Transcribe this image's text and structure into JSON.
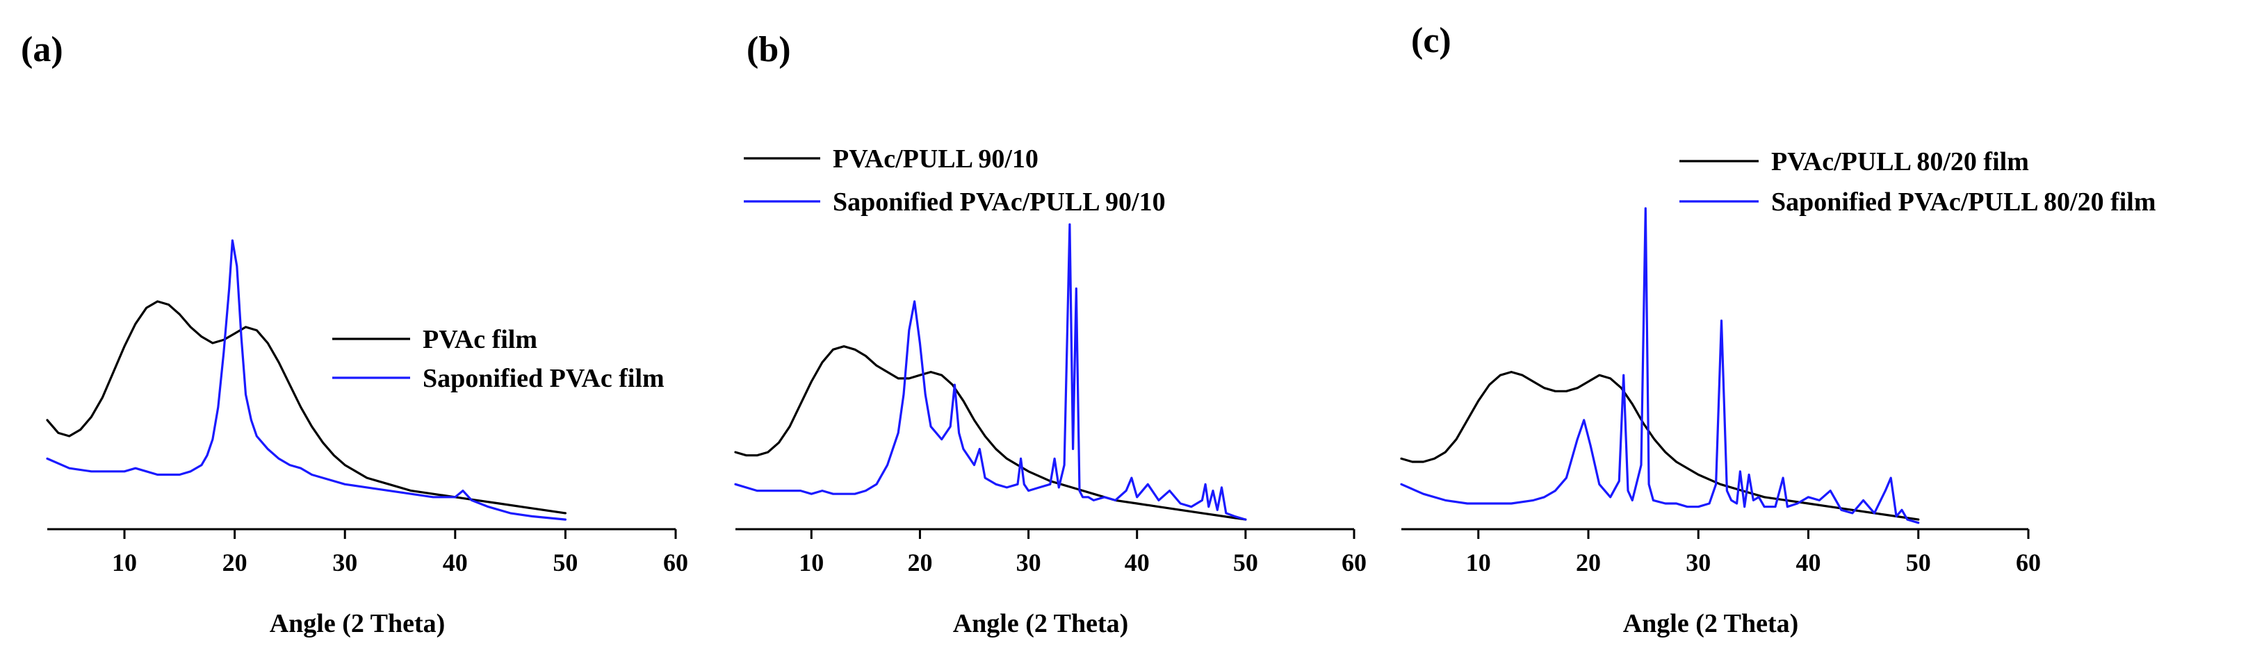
{
  "chart_data": [
    {
      "type": "line",
      "panel_label": "(a)",
      "xlabel": "Angle (2 Theta)",
      "ylabel": "",
      "xlim": [
        3,
        60
      ],
      "ylim": [
        0,
        100
      ],
      "xticks": [
        "10",
        "20",
        "30",
        "40",
        "50",
        "60"
      ],
      "legend": {
        "position": "center-right",
        "entries": [
          "PVAc film",
          "Saponified PVAc film"
        ]
      },
      "series": [
        {
          "name": "PVAc film",
          "color": "#000000",
          "x": [
            3,
            4,
            5,
            6,
            7,
            8,
            9,
            10,
            11,
            12,
            13,
            14,
            15,
            16,
            17,
            18,
            19,
            20,
            21,
            22,
            23,
            24,
            25,
            26,
            27,
            28,
            29,
            30,
            32,
            34,
            36,
            38,
            40,
            42,
            44,
            46,
            48,
            50
          ],
          "y": [
            34,
            30,
            29,
            31,
            35,
            41,
            49,
            57,
            64,
            69,
            71,
            70,
            67,
            63,
            60,
            58,
            59,
            61,
            63,
            62,
            58,
            52,
            45,
            38,
            32,
            27,
            23,
            20,
            16,
            14,
            12,
            11,
            10,
            9,
            8,
            7,
            6,
            5
          ]
        },
        {
          "name": "Saponified PVAc film",
          "color": "#1a1aff",
          "x": [
            3,
            5,
            7,
            9,
            10,
            11,
            12,
            13,
            14,
            15,
            16,
            17,
            17.5,
            18,
            18.5,
            19,
            19.5,
            19.8,
            20.2,
            20.6,
            21,
            21.5,
            22,
            23,
            24,
            25,
            26,
            27,
            28,
            30,
            32,
            34,
            36,
            38,
            40,
            40.7,
            41.5,
            43,
            45,
            47,
            50
          ],
          "y": [
            22,
            19,
            18,
            18,
            18,
            19,
            18,
            17,
            17,
            17,
            18,
            20,
            23,
            28,
            38,
            55,
            75,
            90,
            82,
            60,
            42,
            34,
            29,
            25,
            22,
            20,
            19,
            17,
            16,
            14,
            13,
            12,
            11,
            10,
            10,
            12,
            9,
            7,
            5,
            4,
            3
          ]
        }
      ]
    },
    {
      "type": "line",
      "panel_label": "(b)",
      "xlabel": "Angle (2 Theta)",
      "ylabel": "",
      "xlim": [
        3,
        60
      ],
      "ylim": [
        0,
        100
      ],
      "xticks": [
        "10",
        "20",
        "30",
        "40",
        "50",
        "60"
      ],
      "legend": {
        "position": "top-left",
        "entries": [
          "PVAc/PULL 90/10",
          "Saponified PVAc/PULL 90/10"
        ]
      },
      "series": [
        {
          "name": "PVAc/PULL 90/10",
          "color": "#000000",
          "x": [
            3,
            4,
            5,
            6,
            7,
            8,
            9,
            10,
            11,
            12,
            13,
            14,
            15,
            16,
            17,
            18,
            19,
            20,
            21,
            22,
            23,
            24,
            25,
            26,
            27,
            28,
            29,
            30,
            32,
            34,
            36,
            38,
            40,
            42,
            44,
            46,
            48,
            50
          ],
          "y": [
            24,
            23,
            23,
            24,
            27,
            32,
            39,
            46,
            52,
            56,
            57,
            56,
            54,
            51,
            49,
            47,
            47,
            48,
            49,
            48,
            45,
            40,
            34,
            29,
            25,
            22,
            20,
            18,
            15,
            13,
            11,
            9,
            8,
            7,
            6,
            5,
            4,
            3
          ]
        },
        {
          "name": "Saponified PVAc/PULL 90/10",
          "color": "#1a1aff",
          "x": [
            3,
            5,
            7,
            9,
            10,
            11,
            12,
            13,
            14,
            15,
            16,
            17,
            18,
            18.5,
            19,
            19.5,
            20,
            20.5,
            21,
            22,
            22.8,
            23.2,
            23.6,
            24,
            25,
            25.5,
            26,
            27,
            28,
            29,
            29.3,
            29.6,
            30,
            31,
            32,
            32.4,
            32.8,
            33.3,
            33.8,
            34.1,
            34.4,
            34.7,
            35,
            35.5,
            36,
            37,
            38,
            39,
            39.5,
            40,
            41,
            42,
            43,
            44,
            45,
            46,
            46.3,
            46.6,
            47,
            47.4,
            47.8,
            48.2,
            49,
            50
          ],
          "y": [
            14,
            12,
            12,
            12,
            11,
            12,
            11,
            11,
            11,
            12,
            14,
            20,
            30,
            42,
            62,
            71,
            58,
            42,
            32,
            28,
            32,
            45,
            30,
            25,
            20,
            25,
            16,
            14,
            13,
            14,
            22,
            14,
            12,
            13,
            14,
            22,
            13,
            20,
            95,
            25,
            75,
            12,
            10,
            10,
            9,
            10,
            9,
            12,
            16,
            10,
            14,
            9,
            12,
            8,
            7,
            9,
            14,
            7,
            12,
            6,
            13,
            5,
            4,
            3
          ]
        }
      ]
    },
    {
      "type": "line",
      "panel_label": "(c)",
      "xlabel": "Angle (2 Theta)",
      "ylabel": "",
      "xlim": [
        3,
        60
      ],
      "ylim": [
        0,
        100
      ],
      "xticks": [
        "10",
        "20",
        "30",
        "40",
        "50",
        "60"
      ],
      "legend": {
        "position": "top-right",
        "entries": [
          "PVAc/PULL 80/20 film",
          "Saponified PVAc/PULL 80/20 film"
        ]
      },
      "series": [
        {
          "name": "PVAc/PULL 80/20 film",
          "color": "#000000",
          "x": [
            3,
            4,
            5,
            6,
            7,
            8,
            9,
            10,
            11,
            12,
            13,
            14,
            15,
            16,
            17,
            18,
            19,
            20,
            21,
            22,
            23,
            24,
            25,
            26,
            27,
            28,
            29,
            30,
            32,
            34,
            36,
            38,
            40,
            42,
            44,
            46,
            48,
            50
          ],
          "y": [
            22,
            21,
            21,
            22,
            24,
            28,
            34,
            40,
            45,
            48,
            49,
            48,
            46,
            44,
            43,
            43,
            44,
            46,
            48,
            47,
            44,
            39,
            33,
            28,
            24,
            21,
            19,
            17,
            14,
            12,
            10,
            9,
            8,
            7,
            6,
            5,
            4,
            3
          ]
        },
        {
          "name": "Saponified PVAc/PULL 80/20 film",
          "color": "#1a1aff",
          "x": [
            3,
            5,
            7,
            9,
            11,
            13,
            15,
            16,
            17,
            18,
            19,
            19.6,
            20.2,
            21,
            22,
            22.8,
            23.2,
            23.6,
            24,
            24.8,
            25.2,
            25.5,
            25.9,
            27,
            28,
            29,
            30,
            31,
            31.6,
            32.1,
            32.6,
            33,
            33.5,
            33.8,
            34.2,
            34.6,
            35,
            35.5,
            36,
            37,
            37.7,
            38.1,
            39,
            40,
            41,
            42,
            43,
            44,
            45,
            46,
            47,
            47.5,
            48,
            48.5,
            49,
            50
          ],
          "y": [
            14,
            11,
            9,
            8,
            8,
            8,
            9,
            10,
            12,
            16,
            28,
            34,
            26,
            14,
            10,
            15,
            48,
            12,
            9,
            20,
            100,
            14,
            9,
            8,
            8,
            7,
            7,
            8,
            14,
            65,
            12,
            9,
            8,
            18,
            7,
            17,
            9,
            10,
            7,
            7,
            16,
            7,
            8,
            10,
            9,
            12,
            6,
            5,
            9,
            5,
            12,
            16,
            4,
            6,
            3,
            2
          ]
        }
      ]
    }
  ]
}
